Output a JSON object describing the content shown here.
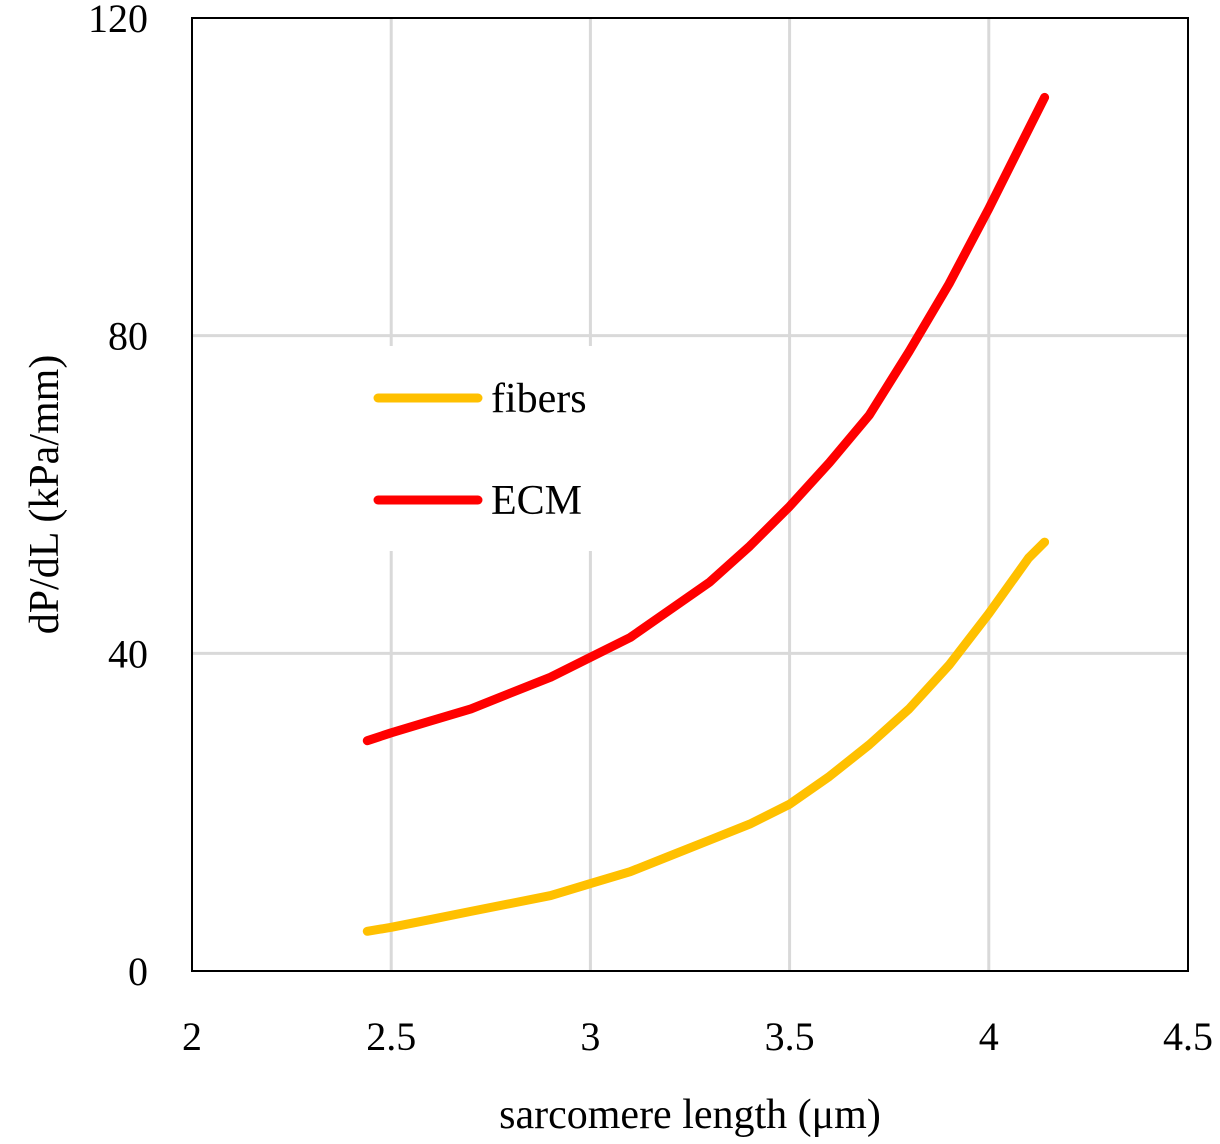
{
  "chart_data": {
    "type": "line",
    "title": "",
    "xlabel": "sarcomere length (μm)",
    "ylabel": "dP/dL (kPa/mm)",
    "xlim": [
      2,
      4.5
    ],
    "ylim": [
      0,
      120
    ],
    "x_ticks": [
      2,
      2.5,
      3,
      3.5,
      4,
      4.5
    ],
    "x_tick_labels": [
      "2",
      "2.5",
      "3",
      "3.5",
      "4",
      "4.5"
    ],
    "y_ticks": [
      0,
      40,
      80,
      120
    ],
    "y_tick_labels": [
      "0",
      "40",
      "80",
      "120"
    ],
    "grid": true,
    "legend_position": "upper-left inside plot area",
    "series": [
      {
        "name": "fibers",
        "color": "#ffc000",
        "x": [
          2.44,
          2.5,
          2.6,
          2.7,
          2.8,
          2.9,
          3.0,
          3.1,
          3.2,
          3.3,
          3.4,
          3.5,
          3.6,
          3.7,
          3.8,
          3.9,
          4.0,
          4.1,
          4.14
        ],
        "y": [
          5,
          5.5,
          6.5,
          7.5,
          8.5,
          9.5,
          11,
          12.5,
          14.5,
          16.5,
          18.5,
          21,
          24.5,
          28.5,
          33,
          38.5,
          45,
          52,
          54
        ]
      },
      {
        "name": "ECM",
        "color": "#ff0000",
        "x": [
          2.44,
          2.5,
          2.6,
          2.7,
          2.8,
          2.9,
          3.0,
          3.1,
          3.2,
          3.3,
          3.4,
          3.5,
          3.6,
          3.7,
          3.8,
          3.9,
          4.0,
          4.1,
          4.14
        ],
        "y": [
          29,
          30,
          31.5,
          33,
          35,
          37,
          39.5,
          42,
          45.5,
          49,
          53.5,
          58.5,
          64,
          70,
          78,
          86.5,
          96,
          106,
          110
        ]
      }
    ]
  }
}
